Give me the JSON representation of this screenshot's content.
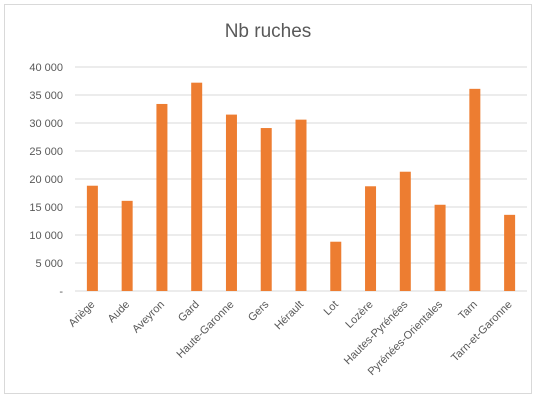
{
  "chart_data": {
    "type": "bar",
    "title": "Nb ruches",
    "xlabel": "",
    "ylabel": "",
    "categories": [
      "Ariège",
      "Aude",
      "Aveyron",
      "Gard",
      "Haute-Garonne",
      "Gers",
      "Hérault",
      "Lot",
      "Lozère",
      "Hautes-Pyrénées",
      "Pyrénées-Orientales",
      "Tarn",
      "Tarn-et-Garonne"
    ],
    "values": [
      18800,
      16100,
      33400,
      37200,
      31500,
      29100,
      30600,
      8800,
      18700,
      21300,
      15400,
      36100,
      13600
    ],
    "ylim": [
      0,
      40000
    ],
    "yticks": [
      0,
      5000,
      10000,
      15000,
      20000,
      25000,
      30000,
      35000,
      40000
    ],
    "ytick_labels": [
      "-",
      "5 000",
      "10 000",
      "15 000",
      "20 000",
      "25 000",
      "30 000",
      "35 000",
      "40 000"
    ],
    "grid": true,
    "legend": "none",
    "bar_color": "#ed7d31",
    "grid_color": "#d9d9d9"
  }
}
